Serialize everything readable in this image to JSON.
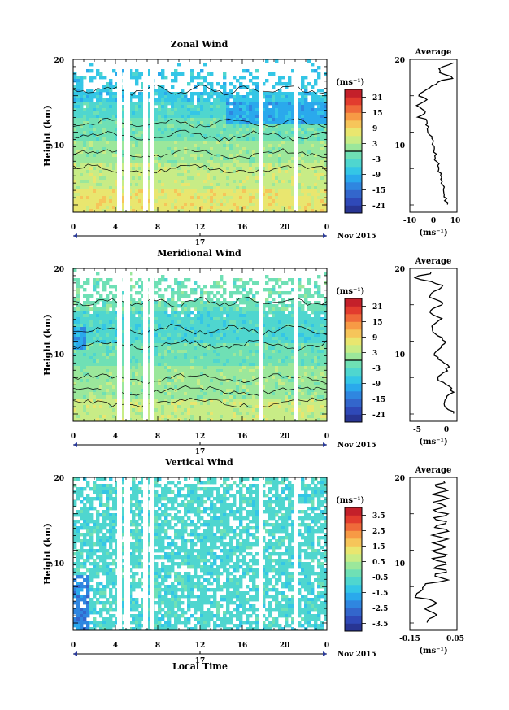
{
  "chart_data": [
    {
      "type": "heatmap",
      "title": "Zonal Wind",
      "ylabel": "Height (km)",
      "xlabel": "",
      "x_ticks": [
        "0",
        "4",
        "8",
        "12",
        "16",
        "20",
        "0"
      ],
      "y_ticks": [
        "20",
        "10"
      ],
      "date_day": "17",
      "date_month": "Nov 2015",
      "colorbar": {
        "unit": "(ms⁻¹)",
        "ticks": [
          "21",
          "15",
          "9",
          "3",
          "-3",
          "-9",
          "-15",
          "-21"
        ],
        "range": [
          -24,
          24
        ],
        "zero_line": 0
      },
      "average": {
        "title": "Average",
        "xlabel": "(ms⁻¹)",
        "x_ticks": [
          "-10",
          "0",
          "10"
        ],
        "y_ticks": [
          "20",
          "10"
        ],
        "xlim": [
          -10,
          10
        ]
      }
    },
    {
      "type": "heatmap",
      "title": "Meridional Wind",
      "ylabel": "Height (km)",
      "xlabel": "",
      "x_ticks": [
        "0",
        "4",
        "8",
        "12",
        "16",
        "20",
        "0"
      ],
      "y_ticks": [
        "20",
        "10"
      ],
      "date_day": "17",
      "date_month": "Nov 2015",
      "colorbar": {
        "unit": "(ms⁻¹)",
        "ticks": [
          "21",
          "15",
          "9",
          "3",
          "-3",
          "-9",
          "-15",
          "-21"
        ],
        "range": [
          -24,
          24
        ],
        "zero_line": 0
      },
      "average": {
        "title": "Average",
        "xlabel": "(ms⁻¹)",
        "x_ticks": [
          "-5",
          "0"
        ],
        "y_ticks": [
          "20",
          "10"
        ],
        "xlim": [
          -7,
          1
        ]
      }
    },
    {
      "type": "heatmap",
      "title": "Vertical Wind",
      "ylabel": "Height (km)",
      "xlabel": "Local Time",
      "x_ticks": [
        "0",
        "4",
        "8",
        "12",
        "16",
        "20",
        "0"
      ],
      "y_ticks": [
        "20",
        "10"
      ],
      "date_day": "17",
      "date_month": "Nov 2015",
      "colorbar": {
        "unit": "(ms⁻¹)",
        "ticks": [
          "3.5",
          "2.5",
          "1.5",
          "0.5",
          "-0.5",
          "-1.5",
          "-2.5",
          "-3.5"
        ],
        "range": [
          -4,
          4
        ],
        "zero_line": null
      },
      "average": {
        "title": "Average",
        "xlabel": "(ms⁻¹)",
        "x_ticks": [
          "-0.15",
          "0.05"
        ],
        "y_ticks": [
          "20",
          "10"
        ],
        "xlim": [
          -0.15,
          0.05
        ]
      }
    }
  ]
}
